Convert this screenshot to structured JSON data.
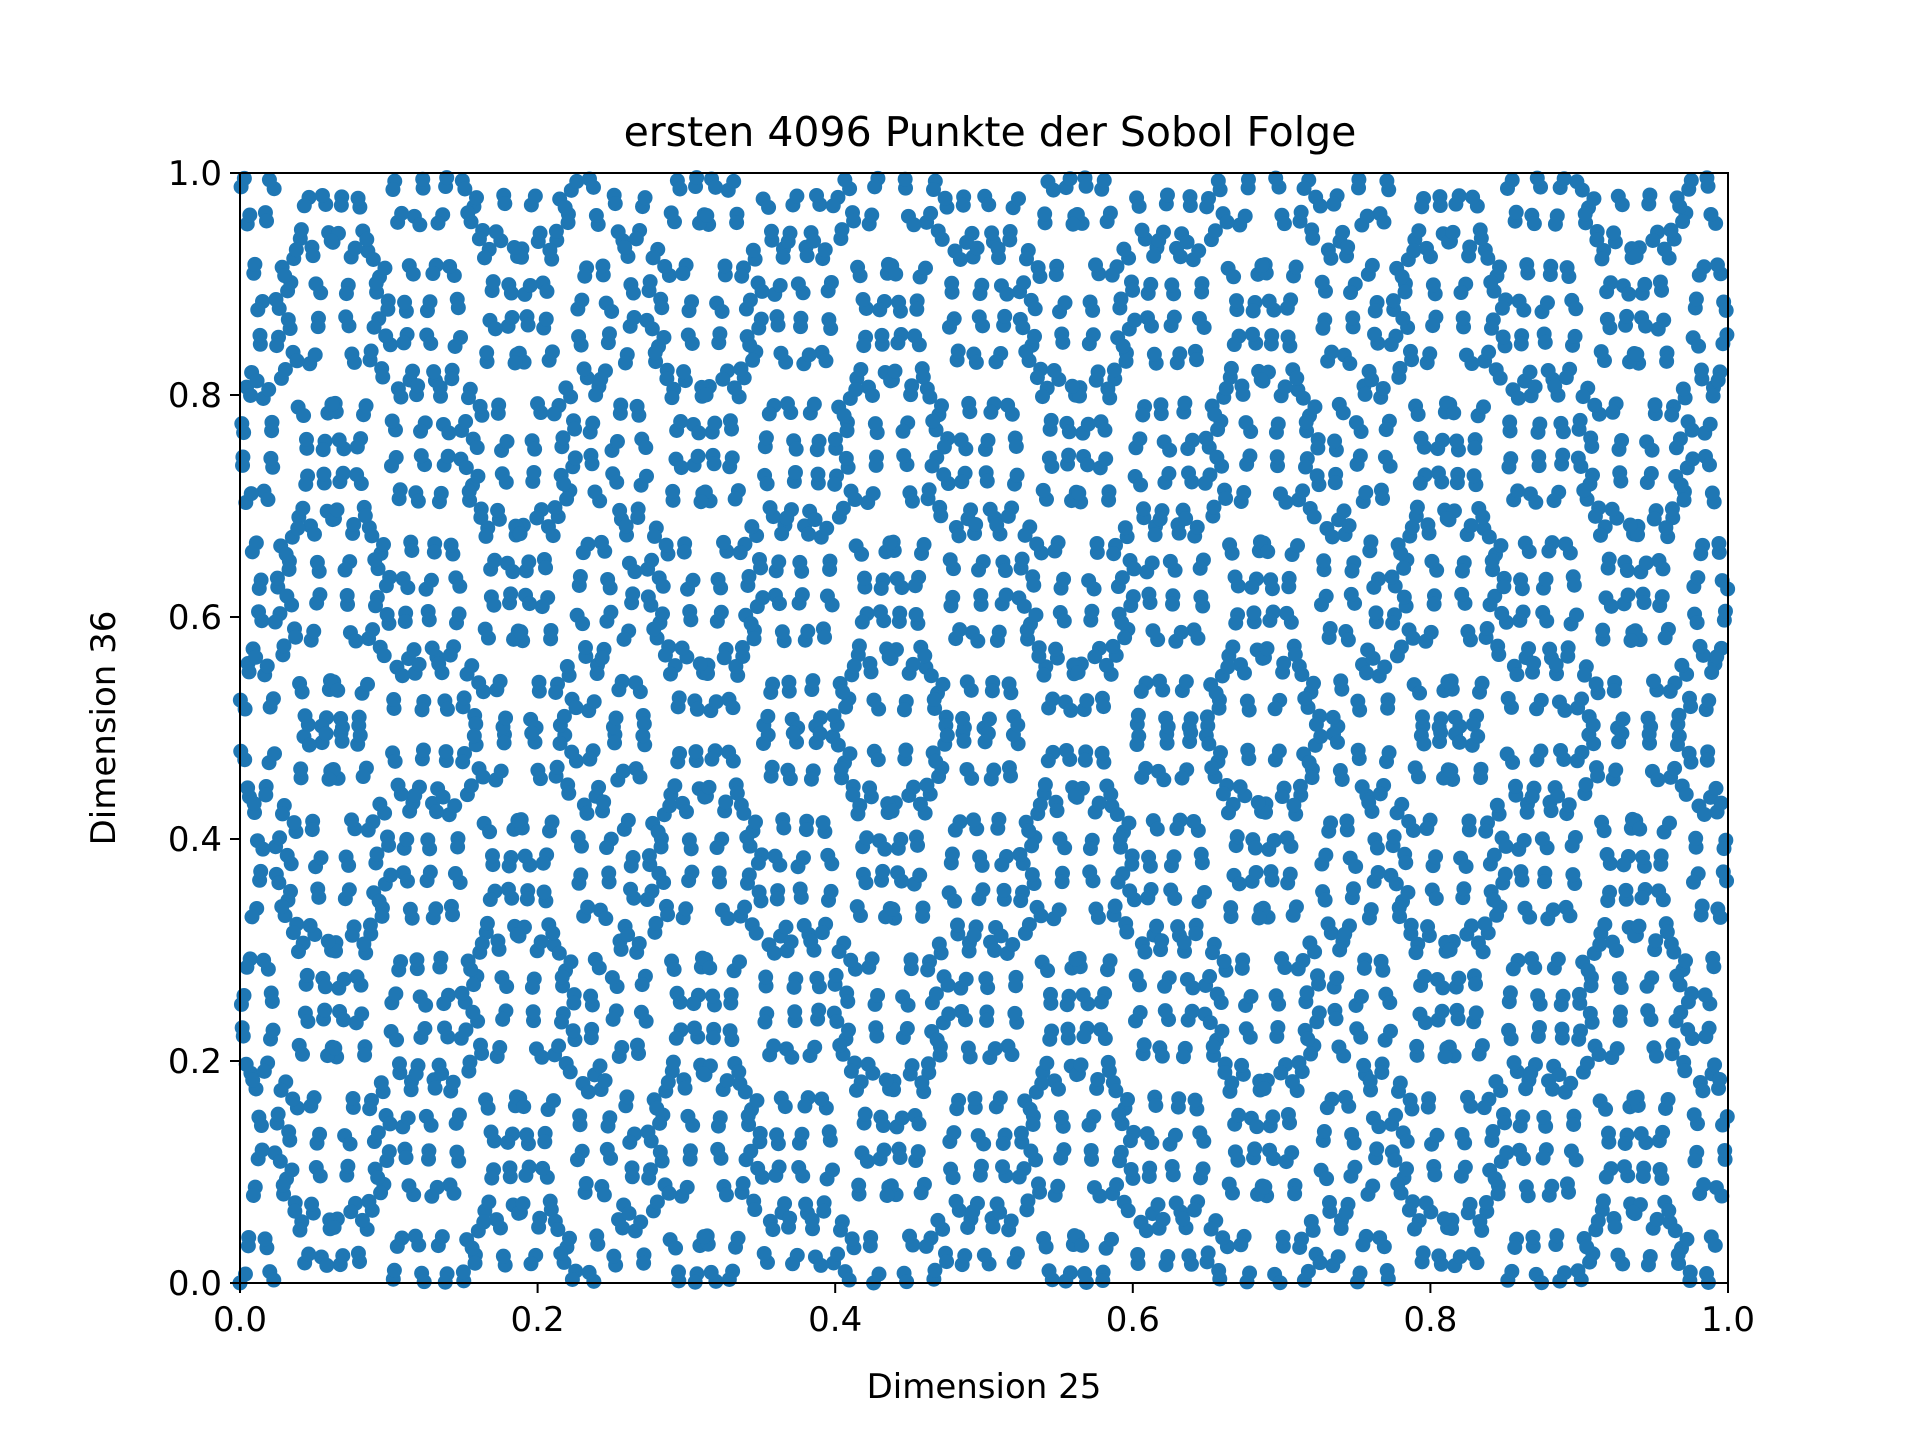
{
  "chart_data": {
    "type": "scatter",
    "title": "ersten 4096 Punkte der Sobol Folge",
    "xlabel": "Dimension 25",
    "ylabel": "Dimension 36",
    "xlim": [
      0.0,
      1.0
    ],
    "ylim": [
      0.0,
      1.0
    ],
    "xticks": [
      "0.0",
      "0.2",
      "0.4",
      "0.6",
      "0.8",
      "1.0"
    ],
    "yticks": [
      "0.0",
      "0.2",
      "0.4",
      "0.6",
      "0.8",
      "1.0"
    ],
    "grid": false,
    "legend": "none",
    "point_count": 4096,
    "marker_color": "#1f77b4",
    "series": [
      {
        "generator": "Sobol sequence, first 4096 points, dimension 25 (x) vs dimension 36 (y)",
        "point_count": 4096
      }
    ]
  }
}
